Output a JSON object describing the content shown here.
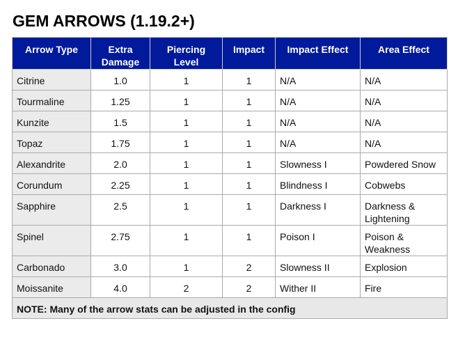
{
  "title": "GEM ARROWS (1.19.2+)",
  "headers": [
    "Arrow Type",
    "Extra Damage",
    "Piercing Level",
    "Impact",
    "Impact Effect",
    "Area Effect"
  ],
  "rows": [
    [
      "Citrine",
      "1.0",
      "1",
      "1",
      "N/A",
      "N/A"
    ],
    [
      "Tourmaline",
      "1.25",
      "1",
      "1",
      "N/A",
      "N/A"
    ],
    [
      "Kunzite",
      "1.5",
      "1",
      "1",
      "N/A",
      "N/A"
    ],
    [
      "Topaz",
      "1.75",
      "1",
      "1",
      "N/A",
      "N/A"
    ],
    [
      "Alexandrite",
      "2.0",
      "1",
      "1",
      "Slowness I",
      "Powdered Snow"
    ],
    [
      "Corundum",
      "2.25",
      "1",
      "1",
      "Blindness I",
      "Cobwebs"
    ],
    [
      "Sapphire",
      "2.5",
      "1",
      "1",
      "Darkness I",
      "Darkness & Lightening"
    ],
    [
      "Spinel",
      "2.75",
      "1",
      "1",
      "Poison I",
      "Poison & Weakness"
    ],
    [
      "Carbonado",
      "3.0",
      "1",
      "2",
      "Slowness II",
      "Explosion"
    ],
    [
      "Moissanite",
      "4.0",
      "2",
      "2",
      "Wither II",
      "Fire"
    ]
  ],
  "note": "NOTE: Many of the arrow stats can be adjusted in the config"
}
